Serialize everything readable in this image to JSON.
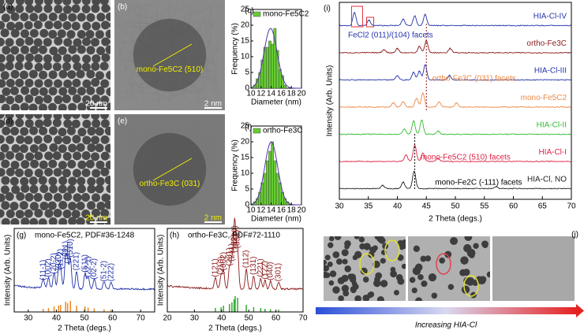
{
  "panels": {
    "a": {
      "label": "(a)",
      "scale": "20 nm"
    },
    "b": {
      "label": "(b)",
      "annotation": "mono-Fe5C2 (510)",
      "scale": "2 nm"
    },
    "c": {
      "label": "(c)",
      "legend": "mono-Fe5C2",
      "x_label": "Diameter (nm)",
      "y_label": "Frequency (%)",
      "bins": [
        10.5,
        11,
        11.5,
        12,
        12.5,
        13,
        13.5,
        14,
        14.5,
        15,
        15.5,
        16,
        16.5,
        17
      ],
      "values": [
        1,
        3,
        5,
        9,
        13,
        13,
        15,
        14,
        19,
        12,
        6,
        4,
        1
      ],
      "xlim": [
        10,
        20
      ],
      "xticks": [
        10,
        12,
        14,
        16,
        18,
        20
      ],
      "ylim": [
        0,
        25
      ],
      "yticks": [
        0,
        5,
        10,
        15,
        20,
        25
      ],
      "color": "#66cc33"
    },
    "d": {
      "label": "(d)",
      "scale": "20 nm"
    },
    "e": {
      "label": "(e)",
      "annotation": "ortho-Fe3C (031)",
      "scale": "2 nm"
    },
    "f": {
      "label": "(f)",
      "legend": "ortho-Fe3C",
      "x_label": "Diameter (nm)",
      "y_label": "Frequency (%)",
      "bins": [
        10.5,
        11,
        11.5,
        12,
        12.5,
        13,
        13.5,
        14,
        14.5,
        15,
        15.5,
        16,
        16.5,
        17,
        17.5
      ],
      "values": [
        1,
        2,
        4,
        7,
        10,
        14,
        17,
        20,
        14,
        10,
        7,
        4,
        2,
        1
      ],
      "xlim": [
        10,
        20
      ],
      "xticks": [
        10,
        12,
        14,
        16,
        18,
        20
      ],
      "ylim": [
        0,
        25
      ],
      "yticks": [
        0,
        5,
        10,
        15,
        20,
        25
      ],
      "color": "#66cc33"
    },
    "g": {
      "label": "(g)",
      "title": "mono-Fe5C2, PDF#36-1248",
      "x_label": "2 Theta (degs.)",
      "y_label": "Intensity (Arb. Units)",
      "xlim": [
        25,
        75
      ],
      "xticks": [
        30,
        40,
        50,
        60,
        70
      ],
      "color": "#2233aa",
      "ref_color": "#ee8822",
      "peaks": [
        {
          "x": 35.3,
          "h": 0.8,
          "label": "(11-1)"
        },
        {
          "x": 37.2,
          "h": 1.0,
          "label": "(002)"
        },
        {
          "x": 39.2,
          "h": 1.4,
          "label": "(20-2)"
        },
        {
          "x": 40.8,
          "h": 1.6,
          "label": "(020)"
        },
        {
          "x": 41.5,
          "h": 1.8,
          "label": "(11-2)"
        },
        {
          "x": 43.3,
          "h": 2.6,
          "label": "(021)"
        },
        {
          "x": 44.0,
          "h": 2.2,
          "label": "(112)"
        },
        {
          "x": 45.0,
          "h": 2.8,
          "label": "(510)"
        },
        {
          "x": 47.2,
          "h": 1.6,
          "label": "(221)"
        },
        {
          "x": 50.2,
          "h": 1.4,
          "label": "(511)"
        },
        {
          "x": 51.3,
          "h": 1.1,
          "label": "(22-1)"
        },
        {
          "x": 53.5,
          "h": 0.9,
          "label": "(02-2)"
        },
        {
          "x": 57.0,
          "h": 0.7,
          "label": "(51-2)"
        },
        {
          "x": 59.5,
          "h": 0.6,
          "label": "(222)"
        }
      ]
    },
    "h": {
      "label": "(h)",
      "title": "ortho-Fe3C, PDF#72-1110",
      "x_label": "2 Theta (degs.)",
      "y_label": "Intensity (Arb. Units)",
      "xlim": [
        20,
        70
      ],
      "xticks": [
        20,
        30,
        40,
        50,
        60,
        70
      ],
      "color": "#8b1a1a",
      "ref_color": "#33aa33",
      "peaks": [
        {
          "x": 37.7,
          "h": 1.0,
          "label": "(121)"
        },
        {
          "x": 39.8,
          "h": 1.2,
          "label": "(210)"
        },
        {
          "x": 40.7,
          "h": 1.6,
          "label": "(002)"
        },
        {
          "x": 42.9,
          "h": 2.0,
          "label": "(201)"
        },
        {
          "x": 43.8,
          "h": 2.4,
          "label": "(211)"
        },
        {
          "x": 44.6,
          "h": 3.2,
          "label": "(102)"
        },
        {
          "x": 45.0,
          "h": 4.0,
          "label": "(220)"
        },
        {
          "x": 45.9,
          "h": 3.6,
          "label": "(031)"
        },
        {
          "x": 49.1,
          "h": 1.8,
          "label": "(112)"
        },
        {
          "x": 51.8,
          "h": 1.2,
          "label": "(131)"
        },
        {
          "x": 54.4,
          "h": 1.0,
          "label": "(221)"
        },
        {
          "x": 56.0,
          "h": 0.8,
          "label": "(122)"
        },
        {
          "x": 58.0,
          "h": 0.7,
          "label": "(040)"
        },
        {
          "x": 61.0,
          "h": 0.6,
          "label": "(301)"
        }
      ]
    },
    "i": {
      "label": "(i)",
      "x_label": "2 Theta (degs.)",
      "y_label": "Intensity (Arb. Units)",
      "xlim": [
        30,
        70
      ],
      "xticks": [
        30,
        35,
        40,
        45,
        50,
        55,
        60,
        65,
        70
      ],
      "traces": [
        {
          "name": "HIA-Cl-IV",
          "color": "#2233aa",
          "peaks": [
            [
              32.6,
              1.2
            ],
            [
              35.1,
              0.5
            ],
            [
              41.0,
              0.6
            ],
            [
              43.0,
              0.9
            ],
            [
              44.8,
              1.0
            ]
          ]
        },
        {
          "name": "ortho-Fe3C",
          "color": "#8b1a1a",
          "peaks": [
            [
              37.7,
              0.3
            ],
            [
              40.0,
              0.4
            ],
            [
              43.8,
              0.6
            ],
            [
              45.0,
              1.1
            ],
            [
              49.1,
              0.4
            ]
          ]
        },
        {
          "name": "HIA-Cl-III",
          "color": "#2233aa",
          "peaks": [
            [
              40.0,
              0.4
            ],
            [
              42.8,
              0.7
            ],
            [
              43.8,
              0.8
            ],
            [
              44.8,
              1.4
            ],
            [
              49.0,
              0.4
            ]
          ]
        },
        {
          "name": "mono-Fe5C2",
          "color": "#ee8844",
          "peaks": [
            [
              39.3,
              0.4
            ],
            [
              41.0,
              0.5
            ],
            [
              43.3,
              0.8
            ],
            [
              44.4,
              1.3
            ],
            [
              47.2,
              0.5
            ],
            [
              50.2,
              0.4
            ]
          ]
        },
        {
          "name": "HIA-Cl-II",
          "color": "#33bb33",
          "peaks": [
            [
              41.2,
              0.5
            ],
            [
              42.8,
              1.2
            ],
            [
              44.2,
              1.3
            ],
            [
              47.0,
              0.3
            ]
          ]
        },
        {
          "name": "HIA-Cl-I",
          "color": "#dd2244",
          "peaks": [
            [
              41.5,
              0.6
            ],
            [
              43.0,
              1.5
            ],
            [
              44.4,
              0.8
            ],
            [
              47.0,
              0.3
            ]
          ]
        },
        {
          "name": "HIA-Cl, NO",
          "color": "#222222",
          "peaks": [
            [
              37.5,
              0.3
            ],
            [
              41.0,
              0.6
            ],
            [
              42.9,
              1.6
            ],
            [
              57.0,
              0.2
            ]
          ]
        }
      ],
      "annotations": [
        "FeCl2 (011)/(104) facets",
        "ortho-Fe3C (031) facets",
        "mono-Fe5C2 (510) facets",
        "mono-Fe2C (-111) facets"
      ]
    },
    "j": {
      "label": "(j)",
      "caption": "Increasing HIA-Cl"
    }
  }
}
